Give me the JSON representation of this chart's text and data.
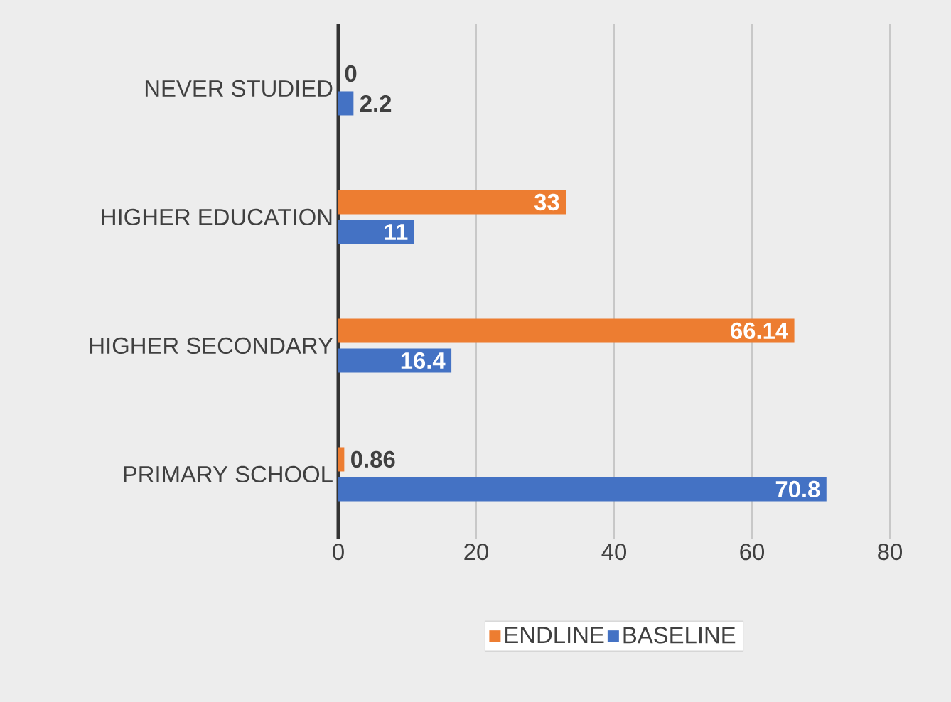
{
  "chart_data": {
    "type": "bar",
    "orientation": "horizontal",
    "categories": [
      "NEVER STUDIED",
      "HIGHER EDUCATION",
      "HIGHER SECONDARY",
      "PRIMARY SCHOOL"
    ],
    "series": [
      {
        "name": "ENDLINE",
        "color": "#ed7d31",
        "values": [
          0,
          33,
          66.14,
          0.86
        ]
      },
      {
        "name": "BASELINE",
        "color": "#4472c4",
        "values": [
          2.2,
          11,
          16.4,
          70.8
        ]
      }
    ],
    "xlim": [
      0,
      80
    ],
    "xticks": [
      0,
      20,
      40,
      60,
      80
    ],
    "grid": "x",
    "legend": "bottom",
    "data_labels": true
  }
}
